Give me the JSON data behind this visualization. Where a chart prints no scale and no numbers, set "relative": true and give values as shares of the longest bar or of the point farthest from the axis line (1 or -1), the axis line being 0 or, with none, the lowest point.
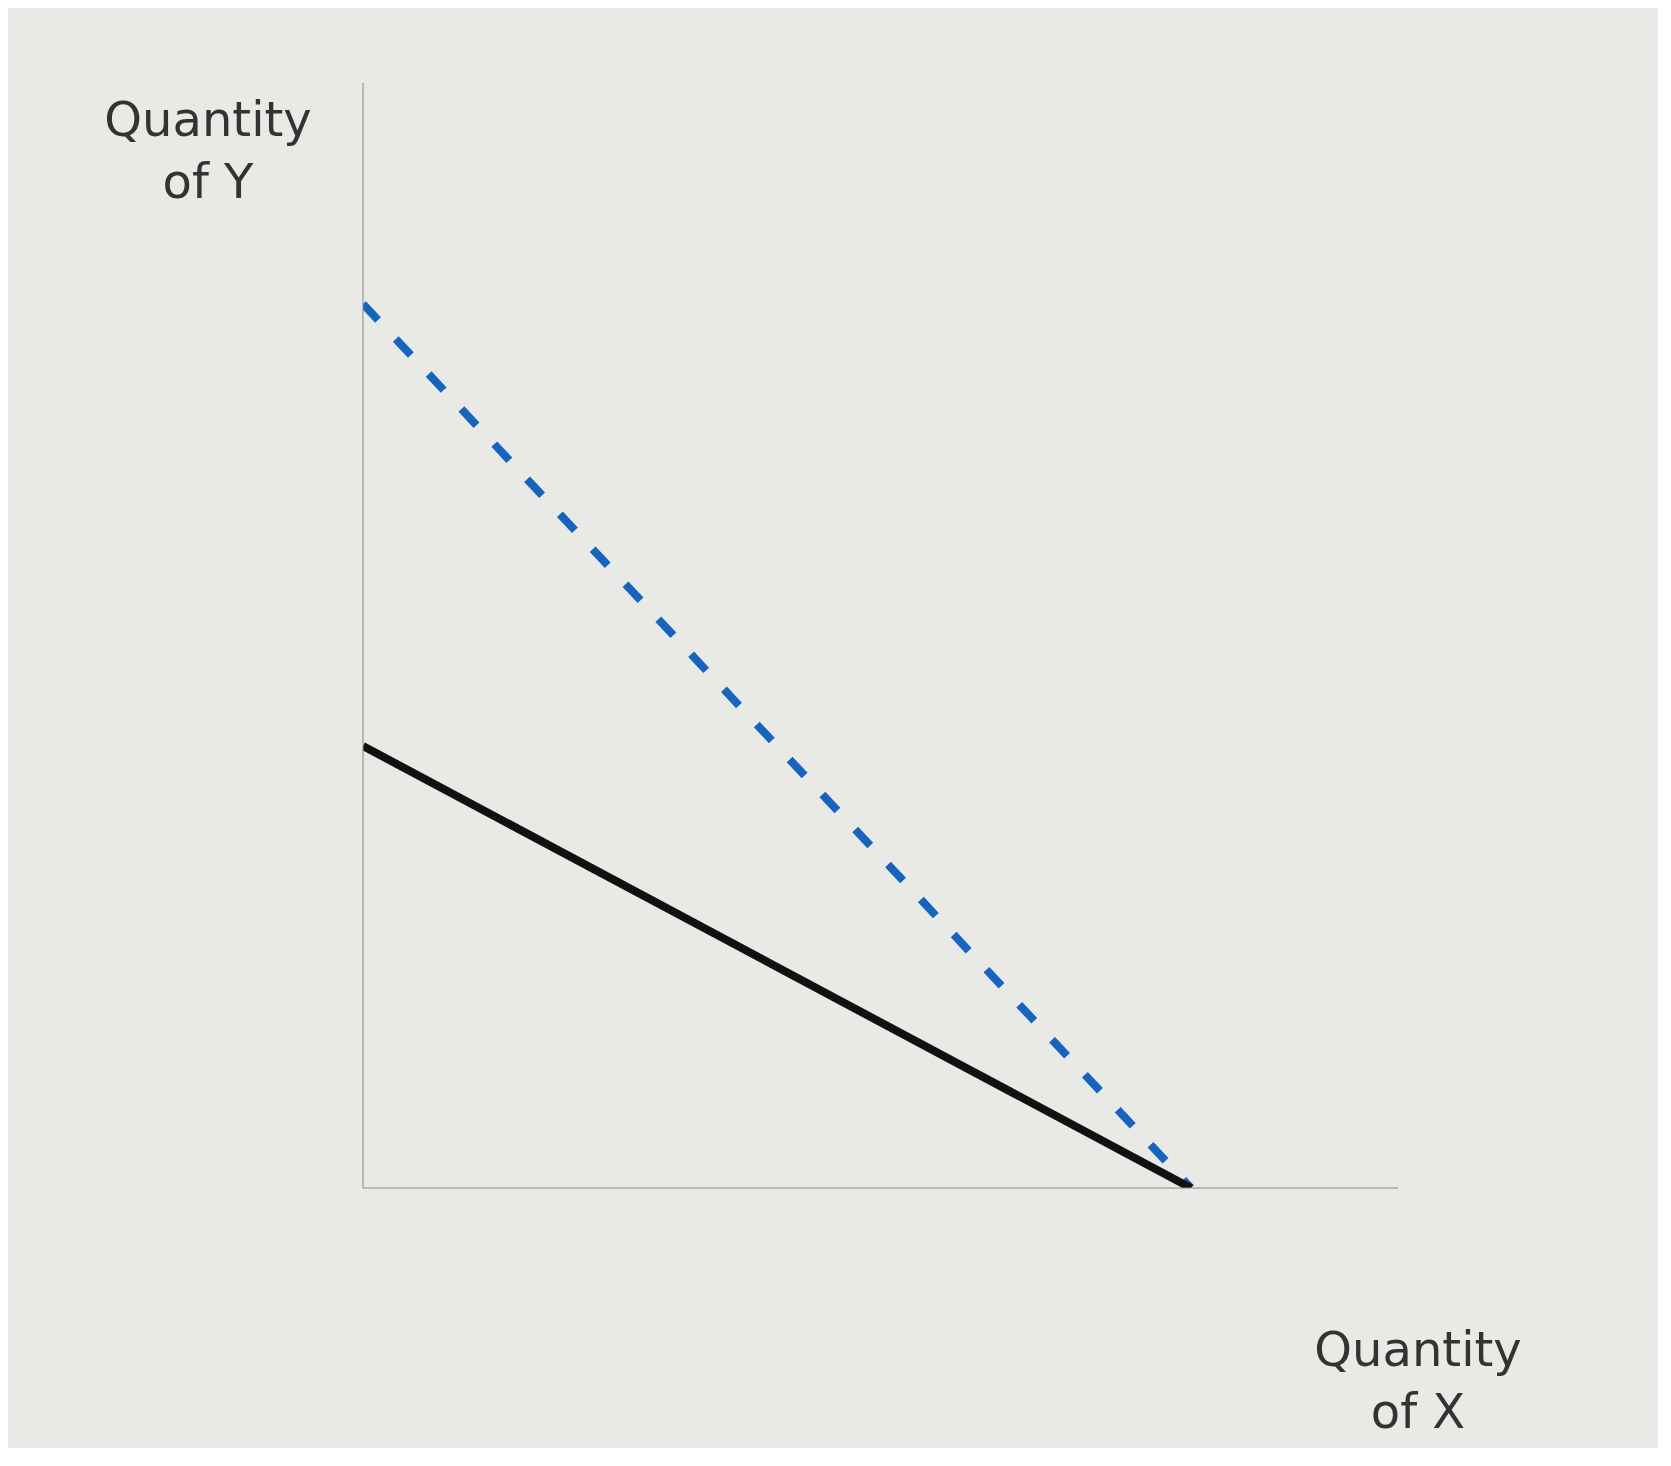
{
  "chart_data": {
    "type": "line",
    "relative": true,
    "xlabel": "Quantity of X",
    "ylabel": "Quantity of Y",
    "categories": [
      null,
      null,
      null,
      null,
      null,
      null
    ],
    "series": [
      {
        "color": "#1565c0",
        "line_style": "dashed",
        "values": [
          1,
          null,
          null,
          null,
          0,
          null
        ]
      },
      {
        "color": "#111111",
        "line_style": "solid",
        "values": [
          0.5,
          null,
          null,
          null,
          0,
          null
        ]
      }
    ],
    "legend": false,
    "grid": false,
    "marker": "none",
    "tick_labels": false
  }
}
